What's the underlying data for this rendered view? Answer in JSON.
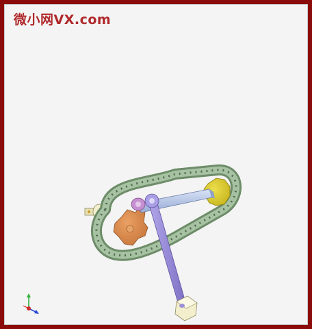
{
  "watermark": {
    "text": "微小网VX.com",
    "color": "#b0282a"
  },
  "frame": {
    "border_color": "#8b0a0a",
    "background": "#f4f4f4"
  },
  "model": {
    "parts": [
      "roller-chain",
      "drive-sprocket",
      "driven-sprocket",
      "slider-bar",
      "connecting-rod",
      "crank-pin",
      "end-block",
      "shaft"
    ],
    "colors": {
      "chain": "#8fb08c",
      "drive_sprocket": "#d98c4a",
      "driven_sprocket": "#d9c92b",
      "bar": "#b9c8e8",
      "rod": "#9b8fd6",
      "block": "#f1edc8",
      "pin": "#c58fd1"
    }
  },
  "triad": {
    "icon": "coordinate-triad-icon",
    "colors": {
      "x": "#d12b2b",
      "y": "#2bb03a",
      "z": "#2b4bd1"
    }
  }
}
